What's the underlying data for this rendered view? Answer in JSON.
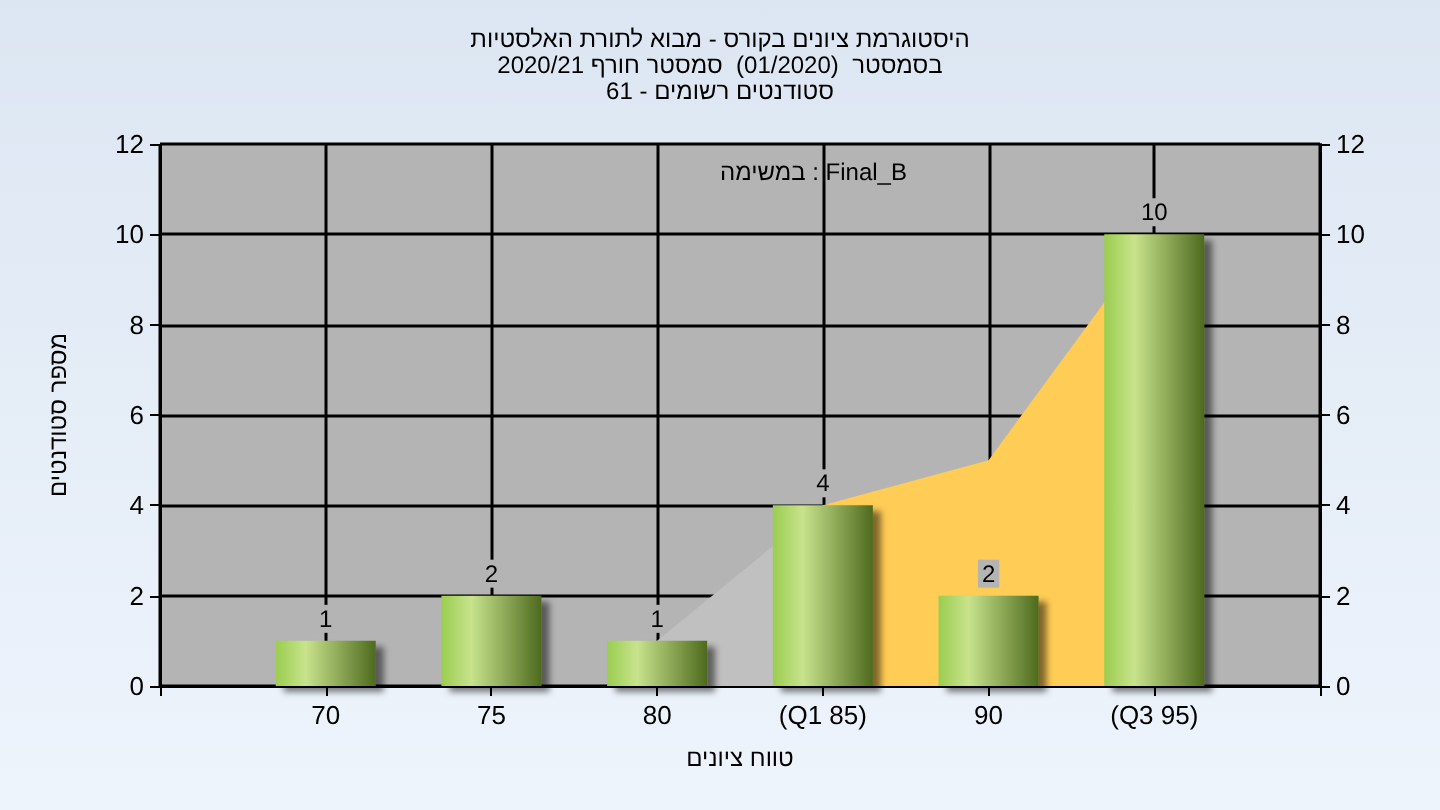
{
  "chart_data": {
    "type": "bar",
    "title": "היסטוגרמת ציונים בקורס - מבוא לתורת האלסטיות",
    "subtitle": "בסמסטר  (01/2020)  סמסטר חורף 2020/21\nסטודנטים רשומים - 61",
    "xlabel": "טווח ציונים",
    "ylabel": "מספר סטודנטים",
    "annotations": [
      "במשימה : Final_B"
    ],
    "categories": [
      null,
      "70",
      "75",
      "80",
      "(Q1 85)",
      "90",
      "(Q3 95)",
      null
    ],
    "series": [
      {
        "type": "area",
        "color": "#c0c0c0",
        "values": [
          null,
          null,
          null,
          1,
          4,
          null,
          null,
          null
        ]
      },
      {
        "type": "area",
        "color": "#ffcc55",
        "values": [
          null,
          null,
          null,
          null,
          4,
          5,
          10,
          null
        ]
      },
      {
        "color": "#9acd50",
        "values": [
          null,
          1,
          2,
          1,
          4,
          2,
          10,
          null
        ],
        "value_labels": [
          null,
          "1",
          "2",
          "1",
          "4",
          "2",
          "10",
          null
        ]
      }
    ],
    "ylim": [
      0,
      12
    ],
    "yticks": [
      0,
      2,
      4,
      6,
      8,
      10,
      12
    ],
    "y2lim": [
      0,
      12
    ],
    "y2ticks": [
      0,
      2,
      4,
      6,
      8,
      10,
      12
    ],
    "grid": true
  }
}
